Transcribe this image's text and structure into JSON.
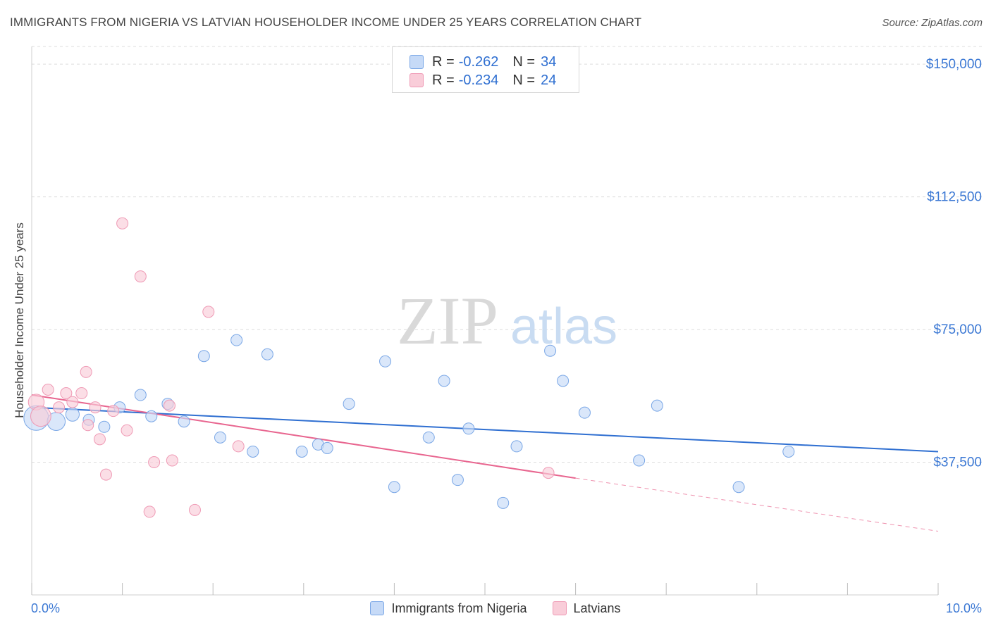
{
  "header": {
    "title": "IMMIGRANTS FROM NIGERIA VS LATVIAN HOUSEHOLDER INCOME UNDER 25 YEARS CORRELATION CHART",
    "source": "Source: ZipAtlas.com"
  },
  "legend": {
    "nigeria": {
      "r_label": "R =",
      "r_value": "-0.262",
      "n_label": "N =",
      "n_value": "34"
    },
    "latvians": {
      "r_label": "R =",
      "r_value": "-0.234",
      "n_label": "N =",
      "n_value": "24"
    }
  },
  "watermark": {
    "zip": "ZIP",
    "atlas": "atlas"
  },
  "colors": {
    "nigeria_fill": "#c6daf7",
    "nigeria_stroke": "#7aa7e6",
    "nigeria_line": "#2f6fd1",
    "latvians_fill": "#f9cdd9",
    "latvians_stroke": "#ef9ab5",
    "latvians_line": "#e8658f",
    "tick_label": "#3b78d4"
  },
  "chart_data": {
    "type": "scatter",
    "title": "IMMIGRANTS FROM NIGERIA VS LATVIAN HOUSEHOLDER INCOME UNDER 25 YEARS CORRELATION CHART",
    "xlabel": "",
    "ylabel": "Householder Income Under 25 years",
    "xlim": [
      0,
      10
    ],
    "ylim": [
      0,
      155000
    ],
    "x_tick_labels": [
      "0.0%",
      "10.0%"
    ],
    "y_ticks": [
      37500,
      75000,
      112500,
      150000
    ],
    "y_tick_labels": [
      "$37,500",
      "$75,000",
      "$112,500",
      "$150,000"
    ],
    "grid": true,
    "legend_position": "top-center",
    "series": [
      {
        "name": "Immigrants from Nigeria",
        "points": [
          [
            0.05,
            50000
          ],
          [
            0.27,
            49000
          ],
          [
            0.45,
            51000
          ],
          [
            0.63,
            49500
          ],
          [
            0.8,
            47500
          ],
          [
            0.97,
            53000
          ],
          [
            1.2,
            56500
          ],
          [
            1.32,
            50500
          ],
          [
            1.5,
            54000
          ],
          [
            1.68,
            49000
          ],
          [
            1.9,
            67500
          ],
          [
            2.08,
            44500
          ],
          [
            2.26,
            72000
          ],
          [
            2.44,
            40500
          ],
          [
            2.6,
            68000
          ],
          [
            2.98,
            40500
          ],
          [
            3.16,
            42500
          ],
          [
            3.26,
            41500
          ],
          [
            3.5,
            54000
          ],
          [
            3.9,
            66000
          ],
          [
            4.0,
            30500
          ],
          [
            4.38,
            44500
          ],
          [
            4.55,
            60500
          ],
          [
            4.7,
            32500
          ],
          [
            4.82,
            47000
          ],
          [
            5.2,
            26000
          ],
          [
            5.35,
            42000
          ],
          [
            5.72,
            69000
          ],
          [
            5.86,
            60500
          ],
          [
            6.1,
            51500
          ],
          [
            6.7,
            38000
          ],
          [
            6.9,
            53500
          ],
          [
            7.8,
            30500
          ],
          [
            8.35,
            40500
          ]
        ],
        "sizes": [
          2.2,
          1.6,
          1.2,
          1,
          1,
          1,
          1,
          1,
          1,
          1,
          1,
          1,
          1,
          1,
          1,
          1,
          1,
          1,
          1,
          1,
          1,
          1,
          1,
          1,
          1,
          1,
          1,
          1,
          1,
          1,
          1,
          1,
          1,
          1
        ],
        "trend": {
          "x": [
            0,
            10
          ],
          "y": [
            53000,
            40500
          ]
        }
      },
      {
        "name": "Latvians",
        "points": [
          [
            0.05,
            54500
          ],
          [
            0.1,
            50500
          ],
          [
            0.18,
            58000
          ],
          [
            0.3,
            53000
          ],
          [
            0.38,
            57000
          ],
          [
            0.45,
            54500
          ],
          [
            0.55,
            57000
          ],
          [
            0.6,
            63000
          ],
          [
            0.62,
            48000
          ],
          [
            0.7,
            53000
          ],
          [
            0.75,
            44000
          ],
          [
            0.82,
            34000
          ],
          [
            0.9,
            52000
          ],
          [
            1.0,
            105000
          ],
          [
            1.05,
            46500
          ],
          [
            1.2,
            90000
          ],
          [
            1.3,
            23500
          ],
          [
            1.35,
            37500
          ],
          [
            1.52,
            53500
          ],
          [
            1.55,
            38000
          ],
          [
            1.8,
            24000
          ],
          [
            1.95,
            80000
          ],
          [
            2.28,
            42000
          ],
          [
            5.7,
            34500
          ]
        ],
        "sizes": [
          1.4,
          1.8,
          1,
          1,
          1,
          1,
          1,
          1,
          1,
          1,
          1,
          1,
          1,
          1,
          1,
          1,
          1,
          1,
          1,
          1,
          1,
          1,
          1,
          1
        ],
        "trend": {
          "x": [
            0,
            6
          ],
          "y": [
            56500,
            33000
          ]
        },
        "trend_dashed": {
          "x": [
            6,
            10
          ],
          "y": [
            33000,
            18000
          ]
        }
      }
    ]
  }
}
